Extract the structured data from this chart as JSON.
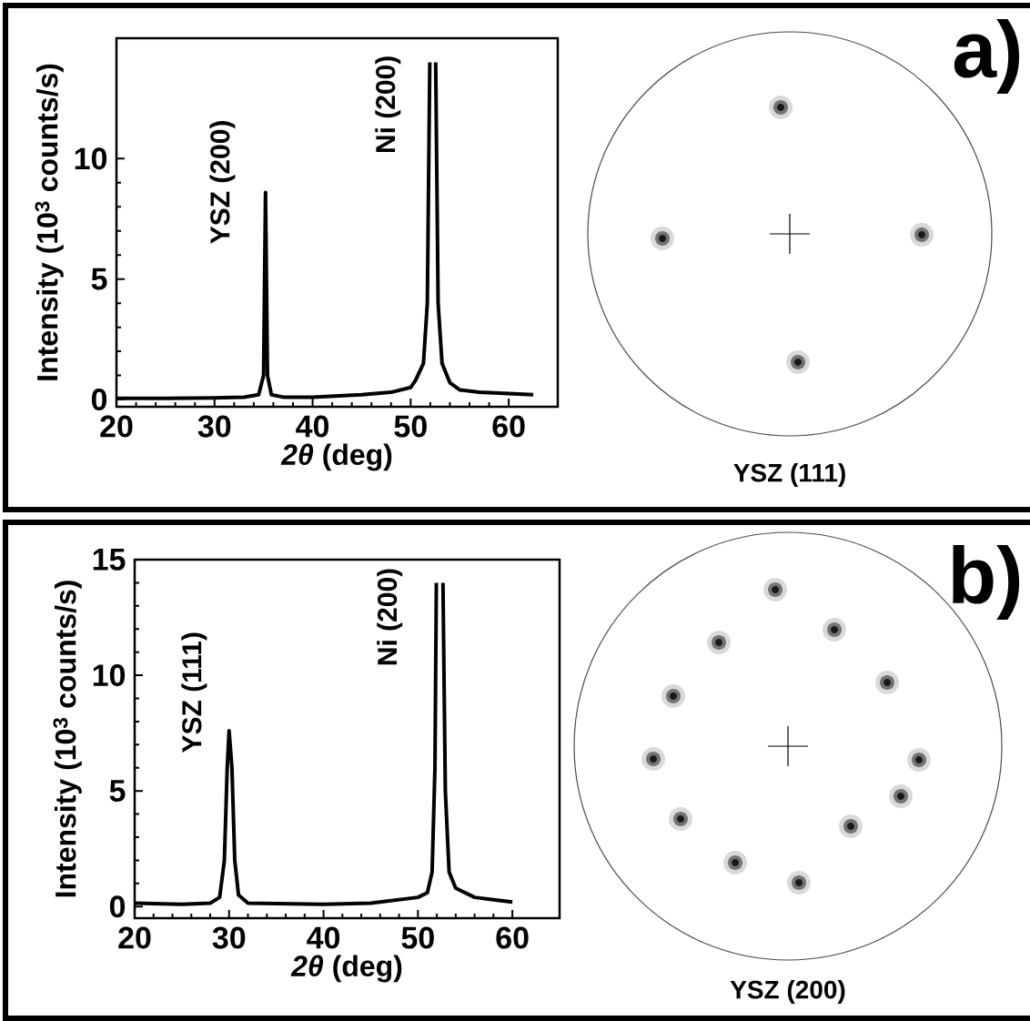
{
  "chart_data": [
    {
      "type": "line",
      "xlabel": "*2θ* (deg)",
      "ylabel": "Intensity (10$^{3}$ counts/s)",
      "color": "#000000",
      "x": [
        20,
        25,
        30,
        33,
        34.5,
        35.0,
        35.2,
        35.4,
        35.8,
        37,
        40,
        45,
        48,
        50,
        50.5,
        51.3,
        51.7,
        51.95,
        52.2,
        52.55,
        52.8,
        53.2,
        54,
        55,
        57,
        60,
        62.5
      ],
      "values": [
        0.05,
        0.05,
        0.07,
        0.1,
        0.2,
        1.0,
        8.6,
        1.0,
        0.2,
        0.1,
        0.1,
        0.2,
        0.3,
        0.5,
        0.8,
        1.5,
        4,
        14,
        null,
        14,
        4,
        1.5,
        0.7,
        0.4,
        0.3,
        0.25,
        0.2
      ],
      "xlim": [
        20,
        65
      ],
      "ylim": [
        -0.3,
        15
      ],
      "xticks": [
        20,
        30,
        40,
        50,
        60
      ],
      "yticks": [
        0,
        5,
        10
      ],
      "annotations": [
        "YSZ (200)",
        "Ni (200)"
      ]
    },
    {
      "type": "other",
      "title": "YSZ (111)",
      "annotations": [
        "a)"
      ]
    },
    {
      "type": "line",
      "xlabel": "*2θ* (deg)",
      "ylabel": "Intensity (10$^{3}$ counts/s)",
      "color": "#000000",
      "x": [
        20,
        25,
        28,
        29,
        29.5,
        29.8,
        30.0,
        30.3,
        30.6,
        31,
        32,
        40,
        45,
        50,
        51,
        51.5,
        51.8,
        51.95,
        52.3,
        52.65,
        52.9,
        53.3,
        54,
        56,
        58,
        60
      ],
      "values": [
        0.15,
        0.1,
        0.15,
        0.4,
        2,
        6,
        7.6,
        6,
        2,
        0.5,
        0.15,
        0.1,
        0.15,
        0.4,
        0.6,
        1.5,
        6,
        14,
        null,
        14,
        5,
        1.5,
        0.8,
        0.4,
        0.3,
        0.2
      ],
      "xlim": [
        20,
        65
      ],
      "ylim": [
        -0.5,
        15
      ],
      "xticks": [
        20,
        30,
        40,
        50,
        60
      ],
      "yticks": [
        0,
        5,
        10,
        15
      ],
      "annotations": [
        "YSZ (111)",
        "Ni (200)"
      ]
    },
    {
      "type": "other",
      "title": "YSZ (200)",
      "annotations": [
        "b)"
      ]
    }
  ]
}
